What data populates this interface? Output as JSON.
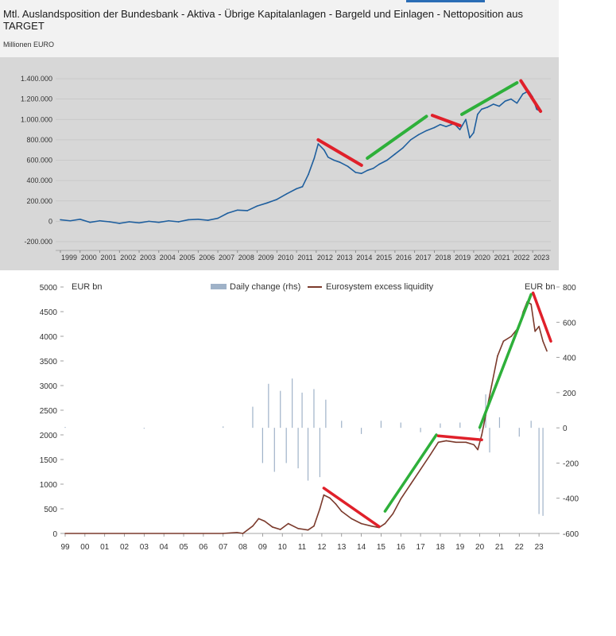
{
  "top": {
    "title": "Mtl. Auslandsposition der Bundesbank - Aktiva - Übrige Kapitalanlagen - Bargeld und Einlagen - Nettoposition aus TARGET",
    "unit": "Millionen EURO"
  },
  "bottom": {
    "legend": {
      "daily": "Daily change (rhs)",
      "excess": "Eurosystem excess liquidity"
    },
    "left_unit": "EUR bn",
    "right_unit": "EUR bn"
  },
  "colors": {
    "line_blue": "#1f5f9e",
    "excess_brown": "#7b3a2c",
    "daily_blue": "#9fb2c8",
    "trend_red": "#e0202a",
    "trend_green": "#2eb03a"
  },
  "chart_data": [
    {
      "type": "line",
      "title": "Mtl. Auslandsposition der Bundesbank - Aktiva - Übrige Kapitalanlagen - Bargeld und Einlagen - Nettoposition aus TARGET",
      "ylabel": "Millionen EURO",
      "ylim": [
        -200000,
        1400000
      ],
      "yticks": [
        -200000,
        0,
        200000,
        400000,
        600000,
        800000,
        1000000,
        1200000,
        1400000
      ],
      "ytick_labels": [
        "-200.000",
        "0",
        "200.000",
        "400.000",
        "600.000",
        "800.000",
        "1.000.000",
        "1.200.000",
        "1.400.000"
      ],
      "xlim": [
        1999,
        2023.8
      ],
      "xtick_labels": [
        "1999",
        "2000",
        "2001",
        "2002",
        "2003",
        "2004",
        "2005",
        "2006",
        "2007",
        "2008",
        "2009",
        "2010",
        "2011",
        "2012",
        "2013",
        "2014",
        "2015",
        "2016",
        "2017",
        "2018",
        "2019",
        "2020",
        "2021",
        "2022",
        "2023"
      ],
      "series": [
        {
          "name": "Nettoposition aus TARGET",
          "x": [
            1999,
            1999.5,
            2000,
            2000.5,
            2001,
            2001.5,
            2002,
            2002.5,
            2003,
            2003.5,
            2004,
            2004.5,
            2005,
            2005.5,
            2006,
            2006.5,
            2007,
            2007.5,
            2008,
            2008.5,
            2009,
            2009.5,
            2010,
            2010.5,
            2011,
            2011.3,
            2011.6,
            2011.9,
            2012.1,
            2012.4,
            2012.6,
            2012.9,
            2013.2,
            2013.6,
            2014,
            2014.3,
            2014.6,
            2014.9,
            2015.2,
            2015.6,
            2016,
            2016.4,
            2016.8,
            2017.2,
            2017.6,
            2018,
            2018.3,
            2018.6,
            2019,
            2019.3,
            2019.6,
            2019.8,
            2020,
            2020.2,
            2020.4,
            2020.7,
            2021,
            2021.3,
            2021.6,
            2021.9,
            2022.2,
            2022.5,
            2022.8,
            2023,
            2023.2,
            2023.4
          ],
          "values": [
            15000,
            5000,
            20000,
            -10000,
            5000,
            -5000,
            -20000,
            -5000,
            -15000,
            0,
            -10000,
            5000,
            -5000,
            15000,
            20000,
            10000,
            30000,
            80000,
            110000,
            105000,
            150000,
            180000,
            215000,
            270000,
            320000,
            340000,
            460000,
            620000,
            760000,
            700000,
            630000,
            600000,
            580000,
            540000,
            480000,
            470000,
            500000,
            520000,
            560000,
            600000,
            660000,
            720000,
            800000,
            850000,
            890000,
            920000,
            950000,
            930000,
            960000,
            900000,
            1000000,
            820000,
            870000,
            1050000,
            1100000,
            1120000,
            1150000,
            1130000,
            1180000,
            1200000,
            1160000,
            1250000,
            1280000,
            1220000,
            1100000,
            1080000
          ]
        }
      ],
      "annotations": [
        {
          "kind": "trend",
          "color": "red",
          "from": [
            2012.1,
            800000
          ],
          "to": [
            2014.3,
            550000
          ]
        },
        {
          "kind": "trend",
          "color": "green",
          "from": [
            2014.6,
            620000
          ],
          "to": [
            2017.6,
            1030000
          ]
        },
        {
          "kind": "trend",
          "color": "red",
          "from": [
            2017.9,
            1040000
          ],
          "to": [
            2019.3,
            940000
          ]
        },
        {
          "kind": "trend",
          "color": "green",
          "from": [
            2019.4,
            1050000
          ],
          "to": [
            2022.2,
            1360000
          ]
        },
        {
          "kind": "trend",
          "color": "red",
          "from": [
            2022.4,
            1380000
          ],
          "to": [
            2023.4,
            1080000
          ]
        }
      ]
    },
    {
      "type": "line",
      "title": "",
      "legend": [
        "Daily change (rhs)",
        "Eurosystem excess liquidity"
      ],
      "ylabel": "EUR bn",
      "ylim": [
        0,
        5000
      ],
      "yticks": [
        0,
        500,
        1000,
        1500,
        2000,
        2500,
        3000,
        3500,
        4000,
        4500,
        5000
      ],
      "y2label": "EUR bn",
      "y2lim": [
        -600,
        800
      ],
      "y2ticks": [
        -600,
        -400,
        -200,
        0,
        200,
        400,
        600,
        800
      ],
      "y2tick_labels": [
        "-600",
        "-400",
        "-200",
        "0",
        "200",
        "400",
        "600",
        "800"
      ],
      "xlim": [
        1999,
        2023.8
      ],
      "xtick_labels": [
        "99",
        "00",
        "01",
        "02",
        "03",
        "04",
        "05",
        "06",
        "07",
        "08",
        "09",
        "10",
        "11",
        "12",
        "13",
        "14",
        "15",
        "16",
        "17",
        "18",
        "19",
        "20",
        "21",
        "22",
        "23"
      ],
      "series": [
        {
          "name": "Eurosystem excess liquidity",
          "x": [
            1999,
            2007,
            2007.7,
            2008,
            2008.5,
            2008.8,
            2009.1,
            2009.5,
            2009.9,
            2010.3,
            2010.8,
            2011.3,
            2011.6,
            2011.9,
            2012.1,
            2012.4,
            2012.7,
            2013,
            2013.5,
            2014,
            2014.5,
            2014.9,
            2015.2,
            2015.6,
            2016,
            2016.5,
            2017,
            2017.5,
            2017.9,
            2018.3,
            2018.8,
            2019.3,
            2019.7,
            2019.9,
            2020.1,
            2020.3,
            2020.6,
            2020.9,
            2021.2,
            2021.6,
            2022,
            2022.2,
            2022.4,
            2022.6,
            2022.8,
            2023,
            2023.2,
            2023.4
          ],
          "values": [
            0,
            0,
            20,
            0,
            150,
            300,
            250,
            130,
            80,
            200,
            100,
            70,
            150,
            500,
            780,
            720,
            600,
            450,
            300,
            200,
            150,
            120,
            200,
            400,
            700,
            1000,
            1300,
            1600,
            1850,
            1880,
            1850,
            1850,
            1800,
            1700,
            2000,
            2400,
            3000,
            3600,
            3900,
            4000,
            4200,
            4500,
            4700,
            4650,
            4100,
            4200,
            3900,
            3700
          ]
        },
        {
          "name": "Daily change (rhs)",
          "x": [
            1999,
            2003,
            2007,
            2008.5,
            2009,
            2009.3,
            2009.6,
            2009.9,
            2010.2,
            2010.5,
            2010.8,
            2011,
            2011.3,
            2011.6,
            2011.9,
            2012.2,
            2013,
            2014,
            2015,
            2016,
            2017,
            2018,
            2019,
            2020,
            2020.3,
            2020.5,
            2021,
            2022,
            2022.6,
            2023,
            2023.2
          ],
          "values": [
            5,
            -5,
            8,
            120,
            -200,
            250,
            -250,
            210,
            -200,
            280,
            -230,
            200,
            -300,
            220,
            -280,
            160,
            40,
            -35,
            40,
            30,
            -25,
            25,
            30,
            -20,
            190,
            -140,
            60,
            -50,
            40,
            -490,
            -500
          ]
        }
      ],
      "annotations": [
        {
          "kind": "trend",
          "color": "red",
          "from": [
            2012.1,
            920
          ],
          "to": [
            2014.9,
            140
          ]
        },
        {
          "kind": "trend",
          "color": "green",
          "from": [
            2015.2,
            450
          ],
          "to": [
            2017.8,
            2000
          ]
        },
        {
          "kind": "trend",
          "color": "red",
          "from": [
            2017.9,
            1980
          ],
          "to": [
            2020.1,
            1900
          ]
        },
        {
          "kind": "trend",
          "color": "green",
          "from": [
            2020,
            2150
          ],
          "to": [
            2022.6,
            4850
          ]
        },
        {
          "kind": "trend",
          "color": "red",
          "from": [
            2022.7,
            4880
          ],
          "to": [
            2023.6,
            3900
          ]
        }
      ]
    }
  ]
}
